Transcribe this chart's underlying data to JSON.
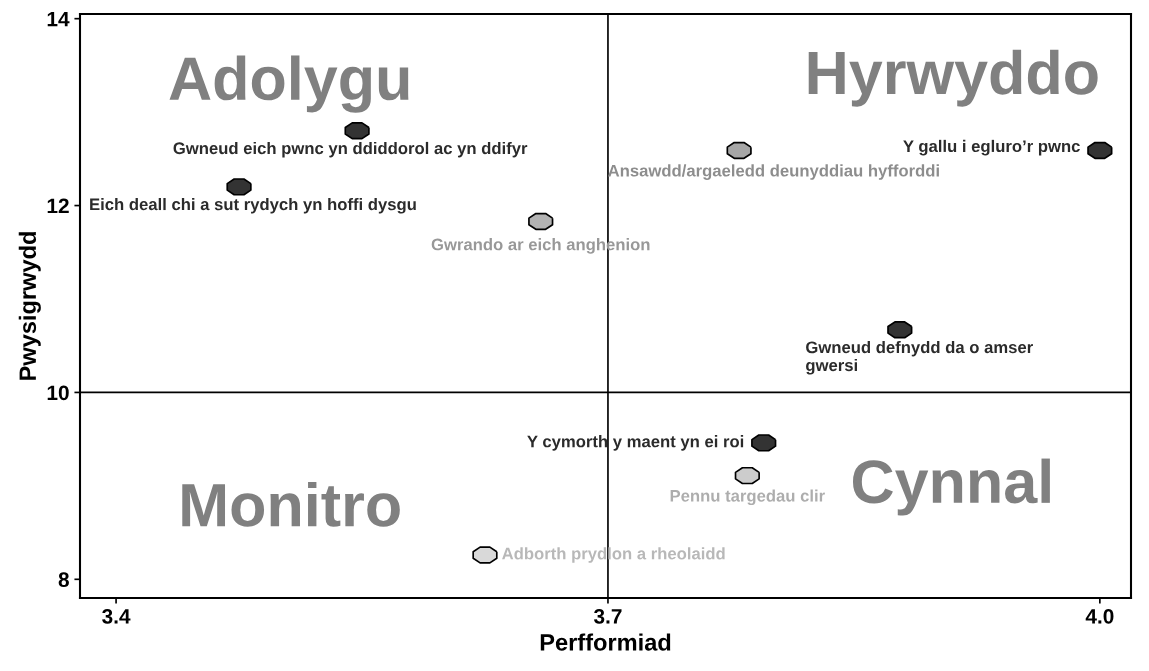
{
  "chart_data": {
    "type": "scatter",
    "xlabel": "Perfformiad",
    "ylabel": "Pwysigrwydd",
    "xlim": [
      3.378,
      4.019
    ],
    "ylim": [
      7.8,
      14.05
    ],
    "xticks": [
      3.4,
      3.7,
      {
        "value": 4.0,
        "label": "4.0"
      }
    ],
    "yticks": [
      8,
      10,
      12,
      14
    ],
    "marker": "circle",
    "grid": false,
    "ref_lines": [
      {
        "axis": "x",
        "value": 3.7,
        "color": "#000000"
      },
      {
        "axis": "y",
        "value": 10,
        "color": "#000000"
      }
    ],
    "annotations": [
      "Adolygu",
      "Hyrwyddo",
      "Monitro",
      "Cynnal"
    ],
    "series": [
      {
        "name": "Gwneud eich pwnc yn ddiddorol ac yn ddifyr",
        "color": "#333333",
        "x": [
          3.547
        ],
        "values": [
          12.8
        ]
      },
      {
        "name": "Eich deall chi a sut rydych yn hoffi dysgu",
        "color": "#333333",
        "x": [
          3.475
        ],
        "values": [
          12.2
        ]
      },
      {
        "name": "Gwrando ar eich anghenion",
        "color": "#b3b3b3",
        "x": [
          3.659
        ],
        "values": [
          11.83
        ]
      },
      {
        "name": "Ansawdd/argaeledd deunyddiau hyfforddi",
        "color": "#a6a6a6",
        "x": [
          3.78
        ],
        "values": [
          12.59
        ]
      },
      {
        "name": "Y gallu i egluro’r pwnc",
        "color": "#333333",
        "x": [
          4.0
        ],
        "values": [
          12.59
        ]
      },
      {
        "name": "Gwneud defnydd da o amser\ngwersi",
        "color": "#333333",
        "x": [
          3.878
        ],
        "values": [
          10.67
        ]
      },
      {
        "name": "Y cymorth y maent yn ei roi",
        "color": "#333333",
        "x": [
          3.795
        ],
        "values": [
          9.46
        ]
      },
      {
        "name": "Pennu targedau clir",
        "color": "#cccccc",
        "x": [
          3.785
        ],
        "values": [
          9.11
        ]
      },
      {
        "name": "Adborth prydlon a rheolaidd",
        "color": "#d9d9d9",
        "x": [
          3.625
        ],
        "values": [
          8.26
        ]
      }
    ]
  }
}
